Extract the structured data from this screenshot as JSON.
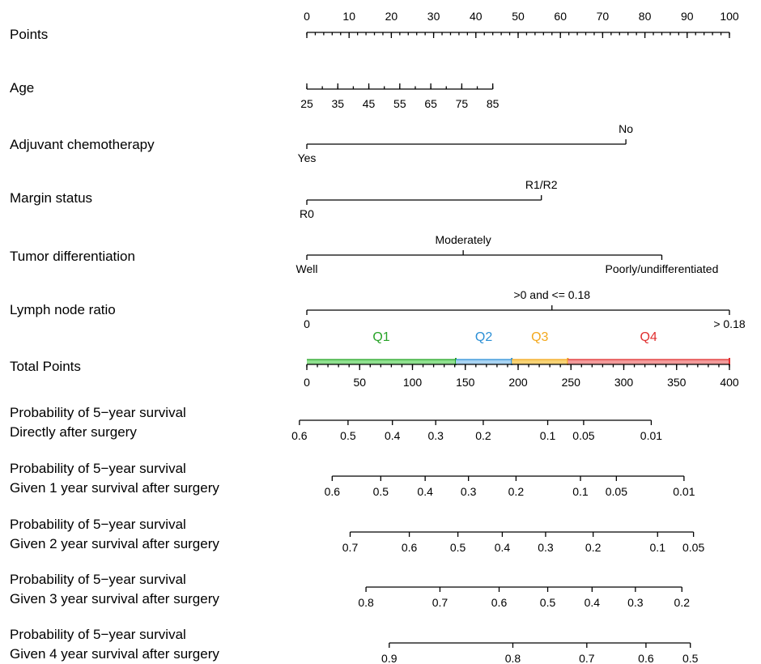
{
  "chart_data": {
    "type": "nomogram",
    "rows": [
      {
        "label": [
          "Points"
        ],
        "kind": "numeric",
        "ticks": [
          0,
          10,
          20,
          30,
          40,
          50,
          60,
          70,
          80,
          90,
          100
        ],
        "tick_labels": [
          "0",
          "10",
          "20",
          "30",
          "40",
          "50",
          "60",
          "70",
          "80",
          "90",
          "100"
        ],
        "labels_above": true,
        "minor_step": 2
      },
      {
        "label": [
          "Age"
        ],
        "kind": "numeric",
        "value_range": [
          25,
          85
        ],
        "points_range": [
          0,
          44
        ],
        "ticks": [
          25,
          35,
          45,
          55,
          65,
          75,
          85
        ],
        "tick_labels": [
          "25",
          "35",
          "45",
          "55",
          "65",
          "75",
          "85"
        ],
        "labels_above": false,
        "minor_step": 5
      },
      {
        "label": [
          "Adjuvant chemotherapy"
        ],
        "kind": "categorical",
        "levels": [
          {
            "name": "Yes",
            "points": 0,
            "pos": "below"
          },
          {
            "name": "No",
            "points": 75.5,
            "pos": "above"
          }
        ]
      },
      {
        "label": [
          "Margin status"
        ],
        "kind": "categorical",
        "levels": [
          {
            "name": "R0",
            "points": 0,
            "pos": "below"
          },
          {
            "name": "R1/R2",
            "points": 55.5,
            "pos": "above"
          }
        ]
      },
      {
        "label": [
          "Tumor differentiation"
        ],
        "kind": "categorical",
        "levels": [
          {
            "name": "Well",
            "points": 0,
            "pos": "below"
          },
          {
            "name": "Moderately",
            "points": 37,
            "pos": "above"
          },
          {
            "name": "Poorly/undifferentiated",
            "points": 84,
            "pos": "below"
          }
        ]
      },
      {
        "label": [
          "Lymph node ratio"
        ],
        "kind": "categorical",
        "levels": [
          {
            "name": "0",
            "points": 0,
            "pos": "below"
          },
          {
            "name": ">0 and <= 0.18",
            "points": 58,
            "pos": "above"
          },
          {
            "name": "> 0.18",
            "points": 100,
            "pos": "below"
          }
        ]
      },
      {
        "label": [
          "Total Points"
        ],
        "kind": "total",
        "value_range": [
          0,
          400
        ],
        "ticks": [
          0,
          50,
          100,
          150,
          200,
          250,
          300,
          350,
          400
        ],
        "tick_labels": [
          "0",
          "50",
          "100",
          "150",
          "200",
          "250",
          "300",
          "350",
          "400"
        ],
        "minor_step": 10,
        "quartiles": [
          {
            "name": "Q1",
            "from": 0,
            "to": 141,
            "color": "#27a327",
            "fill": "#8ee08e"
          },
          {
            "name": "Q2",
            "from": 141,
            "to": 194,
            "color": "#2b8fd6",
            "fill": "#a8d3f2"
          },
          {
            "name": "Q3",
            "from": 194,
            "to": 247,
            "color": "#f3a81c",
            "fill": "#f7d274"
          },
          {
            "name": "Q4",
            "from": 247,
            "to": 400,
            "color": "#e02f2f",
            "fill": "#f29a9a"
          }
        ]
      },
      {
        "label": [
          "Probability of 5−year survival",
          "Directly after surgery"
        ],
        "kind": "probability",
        "line_total": [
          -7,
          326
        ],
        "ticks": [
          {
            "label": "0.6",
            "total": -7
          },
          {
            "label": "0.5",
            "total": 39
          },
          {
            "label": "0.4",
            "total": 81
          },
          {
            "label": "0.3",
            "total": 122
          },
          {
            "label": "0.2",
            "total": 167
          },
          {
            "label": "0.1",
            "total": 228
          },
          {
            "label": "0.05",
            "total": 262
          },
          {
            "label": "0.01",
            "total": 326
          }
        ]
      },
      {
        "label": [
          "Probability of 5−year survival",
          "Given 1 year survival after surgery"
        ],
        "kind": "probability",
        "line_total": [
          24,
          357
        ],
        "ticks": [
          {
            "label": "0.6",
            "total": 24
          },
          {
            "label": "0.5",
            "total": 70
          },
          {
            "label": "0.4",
            "total": 112
          },
          {
            "label": "0.3",
            "total": 153
          },
          {
            "label": "0.2",
            "total": 198
          },
          {
            "label": "0.1",
            "total": 259
          },
          {
            "label": "0.05",
            "total": 293
          },
          {
            "label": "0.01",
            "total": 357
          }
        ]
      },
      {
        "label": [
          "Probability of 5−year survival",
          "Given 2 year survival after surgery"
        ],
        "kind": "probability",
        "line_total": [
          41,
          366
        ],
        "ticks": [
          {
            "label": "0.7",
            "total": 41
          },
          {
            "label": "0.6",
            "total": 97
          },
          {
            "label": "0.5",
            "total": 143
          },
          {
            "label": "0.4",
            "total": 185
          },
          {
            "label": "0.3",
            "total": 226
          },
          {
            "label": "0.2",
            "total": 271
          },
          {
            "label": "0.1",
            "total": 332
          },
          {
            "label": "0.05",
            "total": 366
          }
        ]
      },
      {
        "label": [
          "Probability of 5−year survival",
          "Given 3 year survival after surgery"
        ],
        "kind": "probability",
        "line_total": [
          56,
          355
        ],
        "ticks": [
          {
            "label": "0.8",
            "total": 56
          },
          {
            "label": "0.7",
            "total": 126
          },
          {
            "label": "0.6",
            "total": 182
          },
          {
            "label": "0.5",
            "total": 228
          },
          {
            "label": "0.4",
            "total": 270
          },
          {
            "label": "0.3",
            "total": 311
          },
          {
            "label": "0.2",
            "total": 355
          }
        ]
      },
      {
        "label": [
          "Probability of 5−year survival",
          "Given 4 year survival after surgery"
        ],
        "kind": "probability",
        "line_total": [
          78,
          363
        ],
        "ticks": [
          {
            "label": "0.9",
            "total": 78
          },
          {
            "label": "0.8",
            "total": 195
          },
          {
            "label": "0.7",
            "total": 265
          },
          {
            "label": "0.6",
            "total": 321
          },
          {
            "label": "0.5",
            "total": 363
          }
        ]
      }
    ]
  }
}
